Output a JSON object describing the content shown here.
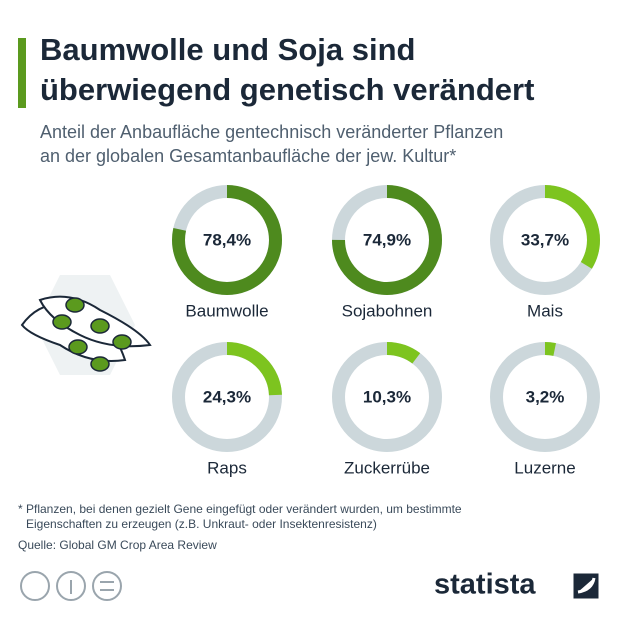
{
  "chart_data": {
    "type": "donut",
    "title": [
      "Baumwolle und Soja sind",
      "überwiegend genetisch verändert"
    ],
    "subtitle": [
      "Anteil der Anbaufläche gentechnisch veränderter Pflanzen",
      "an der globalen Gesamtanbaufläche der jew. Kultur*"
    ],
    "categories": [
      "Baumwolle",
      "Sojabohnen",
      "Mais",
      "Raps",
      "Zuckerrübe",
      "Luzerne"
    ],
    "values": [
      78.4,
      74.9,
      33.7,
      24.3,
      10.3,
      3.2
    ],
    "value_labels": [
      "78,4%",
      "74,9%",
      "33,7%",
      "24,3%",
      "10,3%",
      "3,2%"
    ],
    "colors": [
      "#4e8a1e",
      "#4e8a1e",
      "#7dc41f",
      "#7dc41f",
      "#7dc41f",
      "#7dc41f"
    ],
    "track_color": "#ccd7db",
    "note": [
      "* Pflanzen, bei denen gezielt Gene eingefügt oder verändert wurden, um bestimmte",
      "Eigenschaften zu erzeugen (z.B. Unkraut- oder Insektenresistenz)"
    ],
    "source": "Quelle: Global GM Crop Area Review"
  },
  "brand": "statista"
}
